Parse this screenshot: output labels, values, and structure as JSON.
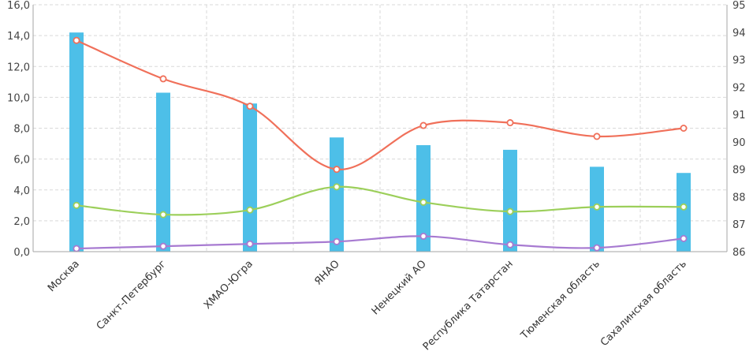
{
  "chart_data": {
    "type": "bar",
    "categories": [
      "Москва",
      "Санкт-Петербург",
      "ХМАО-Югра",
      "ЯНАО",
      "Ненецкий АО",
      "Республика Татарстан",
      "Тюменская область",
      "Сахалинская область"
    ],
    "left_axis": {
      "ylim": [
        0,
        16
      ],
      "ticks": [
        "0,0",
        "2,0",
        "4,0",
        "6,0",
        "8,0",
        "10,0",
        "12,0",
        "14,0",
        "16,0"
      ]
    },
    "right_axis": {
      "ylim": [
        86,
        95
      ],
      "ticks": [
        "86",
        "87",
        "88",
        "89",
        "90",
        "91",
        "92",
        "93",
        "94",
        "95"
      ]
    },
    "grid": true,
    "legend": "none",
    "series": [
      {
        "type": "bar",
        "axis": "left",
        "color": "#4dbfe8",
        "values": [
          14.2,
          10.3,
          9.6,
          7.4,
          6.9,
          6.6,
          5.5,
          5.1
        ]
      },
      {
        "type": "line",
        "axis": "right",
        "color": "#f0705a",
        "values": [
          93.7,
          92.3,
          91.3,
          89.0,
          90.6,
          90.7,
          90.2,
          90.5
        ]
      },
      {
        "type": "line",
        "axis": "left",
        "color": "#9ccf5a",
        "values": [
          3.0,
          2.4,
          2.7,
          4.2,
          3.2,
          2.6,
          2.9,
          2.9
        ]
      },
      {
        "type": "line",
        "axis": "left",
        "color": "#a77ad1",
        "values": [
          0.2,
          0.35,
          0.5,
          0.65,
          1.0,
          0.45,
          0.25,
          0.85
        ]
      }
    ]
  }
}
